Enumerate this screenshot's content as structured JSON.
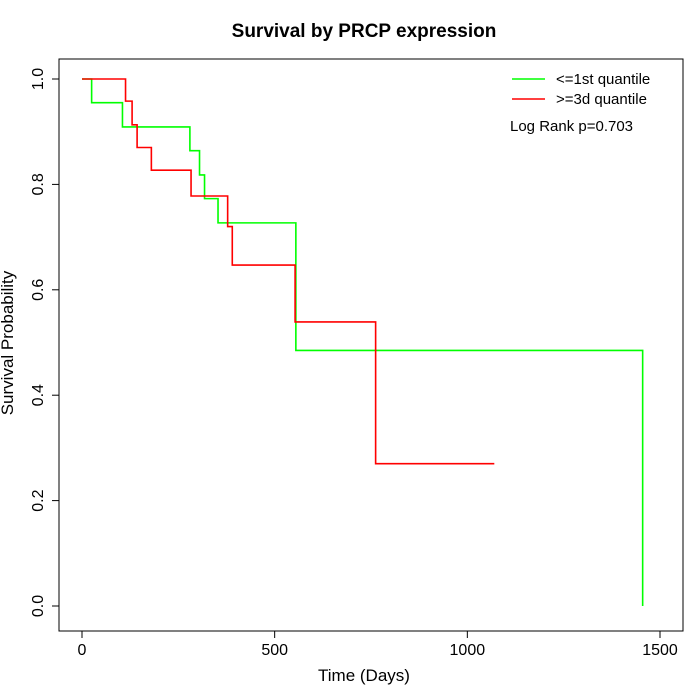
{
  "chart_data": {
    "type": "line",
    "step": true,
    "title": "Survival by PRCP expression",
    "xlabel": "Time (Days)",
    "ylabel": "Survival Probability",
    "xlim": [
      0,
      1500
    ],
    "ylim": [
      0,
      1.0
    ],
    "x_ticks": [
      0,
      500,
      1000,
      1500
    ],
    "x_tick_labels": [
      "0",
      "500",
      "1000",
      "1500"
    ],
    "y_ticks": [
      0.0,
      0.2,
      0.4,
      0.6,
      0.8,
      1.0
    ],
    "y_tick_labels": [
      "0.0",
      "0.2",
      "0.4",
      "0.6",
      "0.8",
      "1.0"
    ],
    "grid": false,
    "legend_position": "top-right",
    "annotation": "Log Rank p=0.703",
    "series": [
      {
        "name": "<=1st quantile",
        "color": "#00ff00",
        "points": [
          [
            0,
            1.0
          ],
          [
            25,
            0.955
          ],
          [
            105,
            0.909
          ],
          [
            280,
            0.864
          ],
          [
            305,
            0.818
          ],
          [
            318,
            0.773
          ],
          [
            353,
            0.727
          ],
          [
            555,
            0.485
          ],
          [
            1455,
            0.0
          ]
        ]
      },
      {
        "name": ">=3d quantile",
        "color": "#ff0000",
        "points": [
          [
            0,
            1.0
          ],
          [
            113,
            0.958
          ],
          [
            130,
            0.913
          ],
          [
            143,
            0.87
          ],
          [
            180,
            0.827
          ],
          [
            283,
            0.778
          ],
          [
            378,
            0.72
          ],
          [
            390,
            0.647
          ],
          [
            553,
            0.539
          ],
          [
            762,
            0.27
          ],
          [
            1070,
            0.27
          ]
        ]
      }
    ]
  }
}
